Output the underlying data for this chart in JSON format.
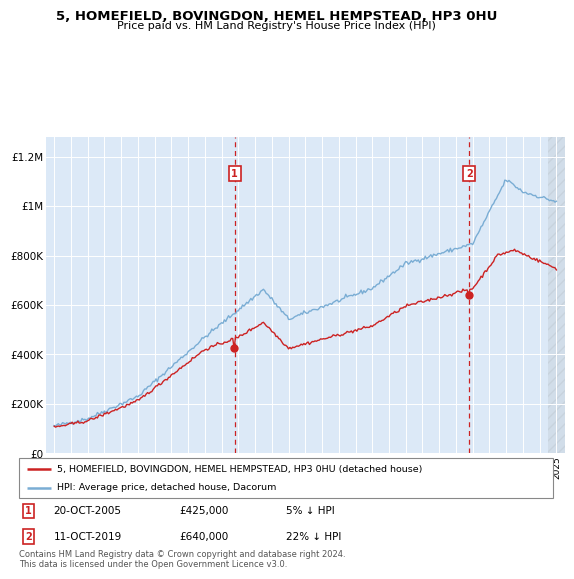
{
  "title": "5, HOMEFIELD, BOVINGDON, HEMEL HEMPSTEAD, HP3 0HU",
  "subtitle": "Price paid vs. HM Land Registry's House Price Index (HPI)",
  "plot_bg_color": "#dce9f7",
  "sale1_x": 2005.79,
  "sale1_price": 425000,
  "sale1_label": "5% ↓ HPI",
  "sale1_date": "20-OCT-2005",
  "sale2_x": 2019.79,
  "sale2_price": 640000,
  "sale2_label": "22% ↓ HPI",
  "sale2_date": "11-OCT-2019",
  "yticks": [
    0,
    200000,
    400000,
    600000,
    800000,
    1000000,
    1200000
  ],
  "ytick_labels": [
    "£0",
    "£200K",
    "£400K",
    "£600K",
    "£800K",
    "£1M",
    "£1.2M"
  ],
  "legend_line1": "5, HOMEFIELD, BOVINGDON, HEMEL HEMPSTEAD, HP3 0HU (detached house)",
  "legend_line2": "HPI: Average price, detached house, Dacorum",
  "footer": "Contains HM Land Registry data © Crown copyright and database right 2024.\nThis data is licensed under the Open Government Licence v3.0.",
  "hpi_color": "#7aadd4",
  "sale_color": "#cc2222",
  "box_color": "#cc2222",
  "xmin": 1994.5,
  "xmax": 2025.5,
  "ymin": 0,
  "ymax": 1280000
}
